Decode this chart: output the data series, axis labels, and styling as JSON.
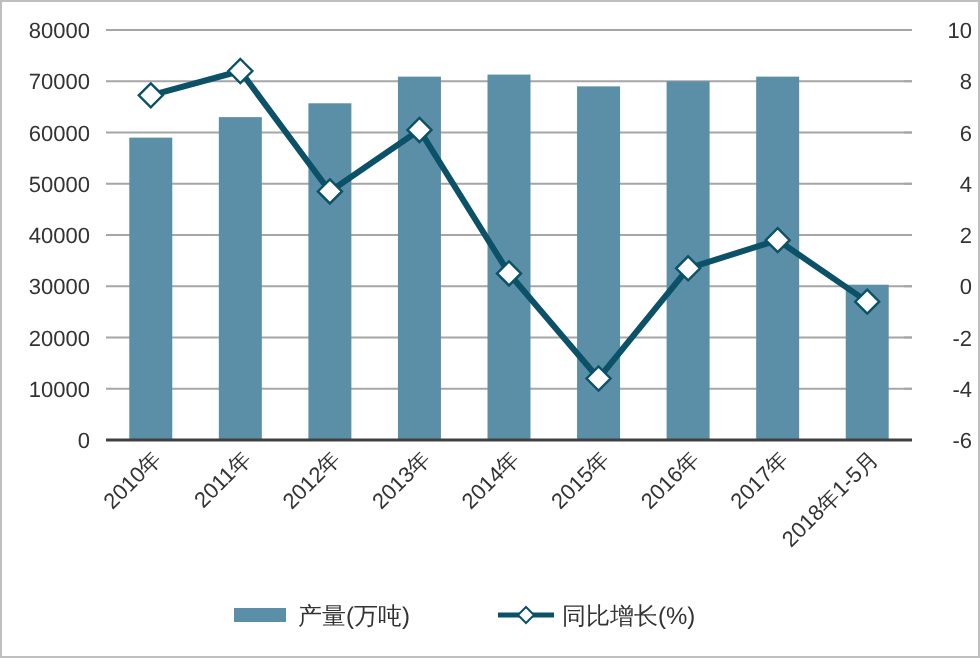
{
  "chart_data": {
    "type": "bar",
    "categories": [
      "2010年",
      "2011年",
      "2012年",
      "2013年",
      "2014年",
      "2015年",
      "2016年",
      "2017年",
      "2018年1-5月"
    ],
    "series": [
      {
        "name": "产量(万吨)",
        "color": "#5b8fa8",
        "values": [
          59000,
          63000,
          65700,
          70900,
          71300,
          69000,
          70000,
          70900,
          30300
        ]
      },
      {
        "name": "同比增长(%)",
        "type": "line",
        "axis": "y2",
        "color": "#0b5168",
        "values": [
          7.45,
          8.4,
          3.7,
          6.1,
          0.5,
          -3.6,
          0.7,
          1.8,
          -0.6
        ]
      }
    ],
    "ylim": [
      0,
      80000
    ],
    "yticks": [
      0,
      10000,
      20000,
      30000,
      40000,
      50000,
      60000,
      70000,
      80000
    ],
    "y2lim": [
      -6,
      10
    ],
    "y2ticks": [
      -6,
      -4,
      -2,
      0,
      2,
      4,
      6,
      8,
      10
    ],
    "grid": "y",
    "legend": "bottom",
    "marker": "diamond",
    "line_style": "solid"
  }
}
